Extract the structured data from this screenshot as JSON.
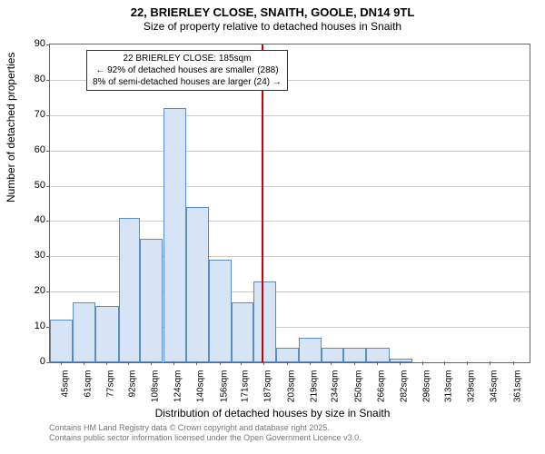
{
  "title_line1": "22, BRIERLEY CLOSE, SNAITH, GOOLE, DN14 9TL",
  "title_line2": "Size of property relative to detached houses in Snaith",
  "ylabel": "Number of detached properties",
  "xlabel": "Distribution of detached houses by size in Snaith",
  "attribution_line1": "Contains HM Land Registry data © Crown copyright and database right 2025.",
  "attribution_line2": "Contains public sector information licensed under the Open Government Licence v3.0.",
  "annotation": {
    "line1": "22 BRIERLEY CLOSE: 185sqm",
    "line2": "← 92% of detached houses are smaller (288)",
    "line3": "8% of semi-detached houses are larger (24) →"
  },
  "chart": {
    "type": "histogram",
    "ylim": [
      0,
      90
    ],
    "ytick_step": 10,
    "xlim_start": 37,
    "xlim_end": 372,
    "xticks": [
      45,
      61,
      77,
      92,
      108,
      124,
      140,
      156,
      171,
      187,
      203,
      219,
      234,
      250,
      266,
      282,
      298,
      313,
      329,
      345,
      361
    ],
    "xtick_suffix": "sqm",
    "marker_x": 185,
    "bar_fill": "#d6e4f5",
    "bar_border": "#5b8cc4",
    "marker_color": "#cc0000",
    "grid_color": "#cccccc",
    "bars": [
      {
        "x": 37,
        "w": 16,
        "v": 12
      },
      {
        "x": 53,
        "w": 16,
        "v": 17
      },
      {
        "x": 69,
        "w": 16,
        "v": 16
      },
      {
        "x": 85,
        "w": 15,
        "v": 41
      },
      {
        "x": 100,
        "w": 16,
        "v": 35
      },
      {
        "x": 116,
        "w": 16,
        "v": 72
      },
      {
        "x": 132,
        "w": 16,
        "v": 44
      },
      {
        "x": 148,
        "w": 16,
        "v": 29
      },
      {
        "x": 164,
        "w": 15,
        "v": 17
      },
      {
        "x": 179,
        "w": 16,
        "v": 23
      },
      {
        "x": 195,
        "w": 16,
        "v": 4
      },
      {
        "x": 211,
        "w": 16,
        "v": 7
      },
      {
        "x": 227,
        "w": 15,
        "v": 4
      },
      {
        "x": 242,
        "w": 16,
        "v": 4
      },
      {
        "x": 258,
        "w": 16,
        "v": 4
      },
      {
        "x": 274,
        "w": 16,
        "v": 1
      },
      {
        "x": 290,
        "w": 16,
        "v": 0
      },
      {
        "x": 306,
        "w": 15,
        "v": 0
      },
      {
        "x": 321,
        "w": 16,
        "v": 0
      },
      {
        "x": 337,
        "w": 16,
        "v": 0
      },
      {
        "x": 353,
        "w": 16,
        "v": 0
      }
    ]
  }
}
